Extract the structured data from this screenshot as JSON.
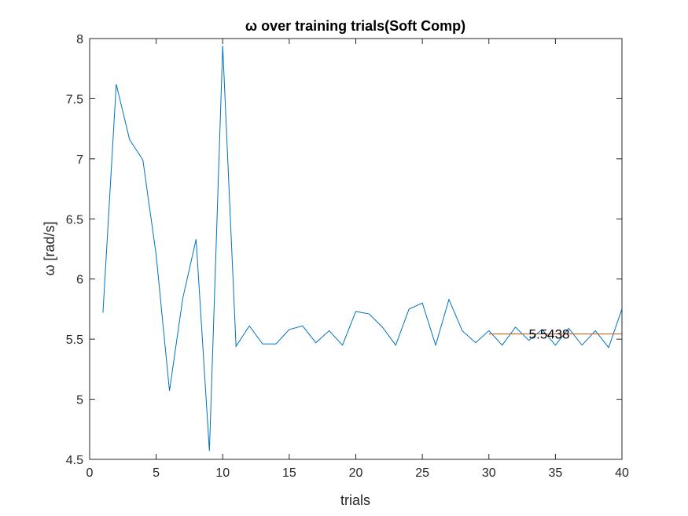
{
  "chart_data": {
    "type": "line",
    "title": "ω over training trials(Soft Comp)",
    "xlabel": "trials",
    "ylabel": "ω [rad/s]",
    "xlim": [
      0,
      40
    ],
    "ylim": [
      4.5,
      8
    ],
    "xticks": [
      0,
      5,
      10,
      15,
      20,
      25,
      30,
      35,
      40
    ],
    "yticks": [
      4.5,
      5,
      5.5,
      6,
      6.5,
      7,
      7.5,
      8
    ],
    "grid": false,
    "series": [
      {
        "color": "#0072BD",
        "x": [
          1,
          2,
          3,
          4,
          5,
          6,
          7,
          8,
          9,
          10,
          11,
          12,
          13,
          14,
          15,
          16,
          17,
          18,
          19,
          20,
          21,
          22,
          23,
          24,
          25,
          26,
          27,
          28,
          29,
          30,
          31,
          32,
          33,
          34,
          35,
          36,
          37,
          38,
          39,
          40
        ],
        "values": [
          5.72,
          7.62,
          7.16,
          6.99,
          6.2,
          5.07,
          5.84,
          6.33,
          4.57,
          7.94,
          5.44,
          5.61,
          5.46,
          5.46,
          5.58,
          5.61,
          5.47,
          5.57,
          5.45,
          5.73,
          5.71,
          5.6,
          5.45,
          5.75,
          5.8,
          5.45,
          5.83,
          5.57,
          5.47,
          5.57,
          5.45,
          5.6,
          5.49,
          5.58,
          5.45,
          5.59,
          5.45,
          5.57,
          5.43,
          5.75
        ]
      },
      {
        "color": "#D95319",
        "x": [
          30,
          40
        ],
        "values": [
          5.5438,
          5.5438
        ]
      }
    ],
    "annotations": [
      {
        "text": "5.5438",
        "x": 33,
        "y": 5.5438
      }
    ]
  }
}
